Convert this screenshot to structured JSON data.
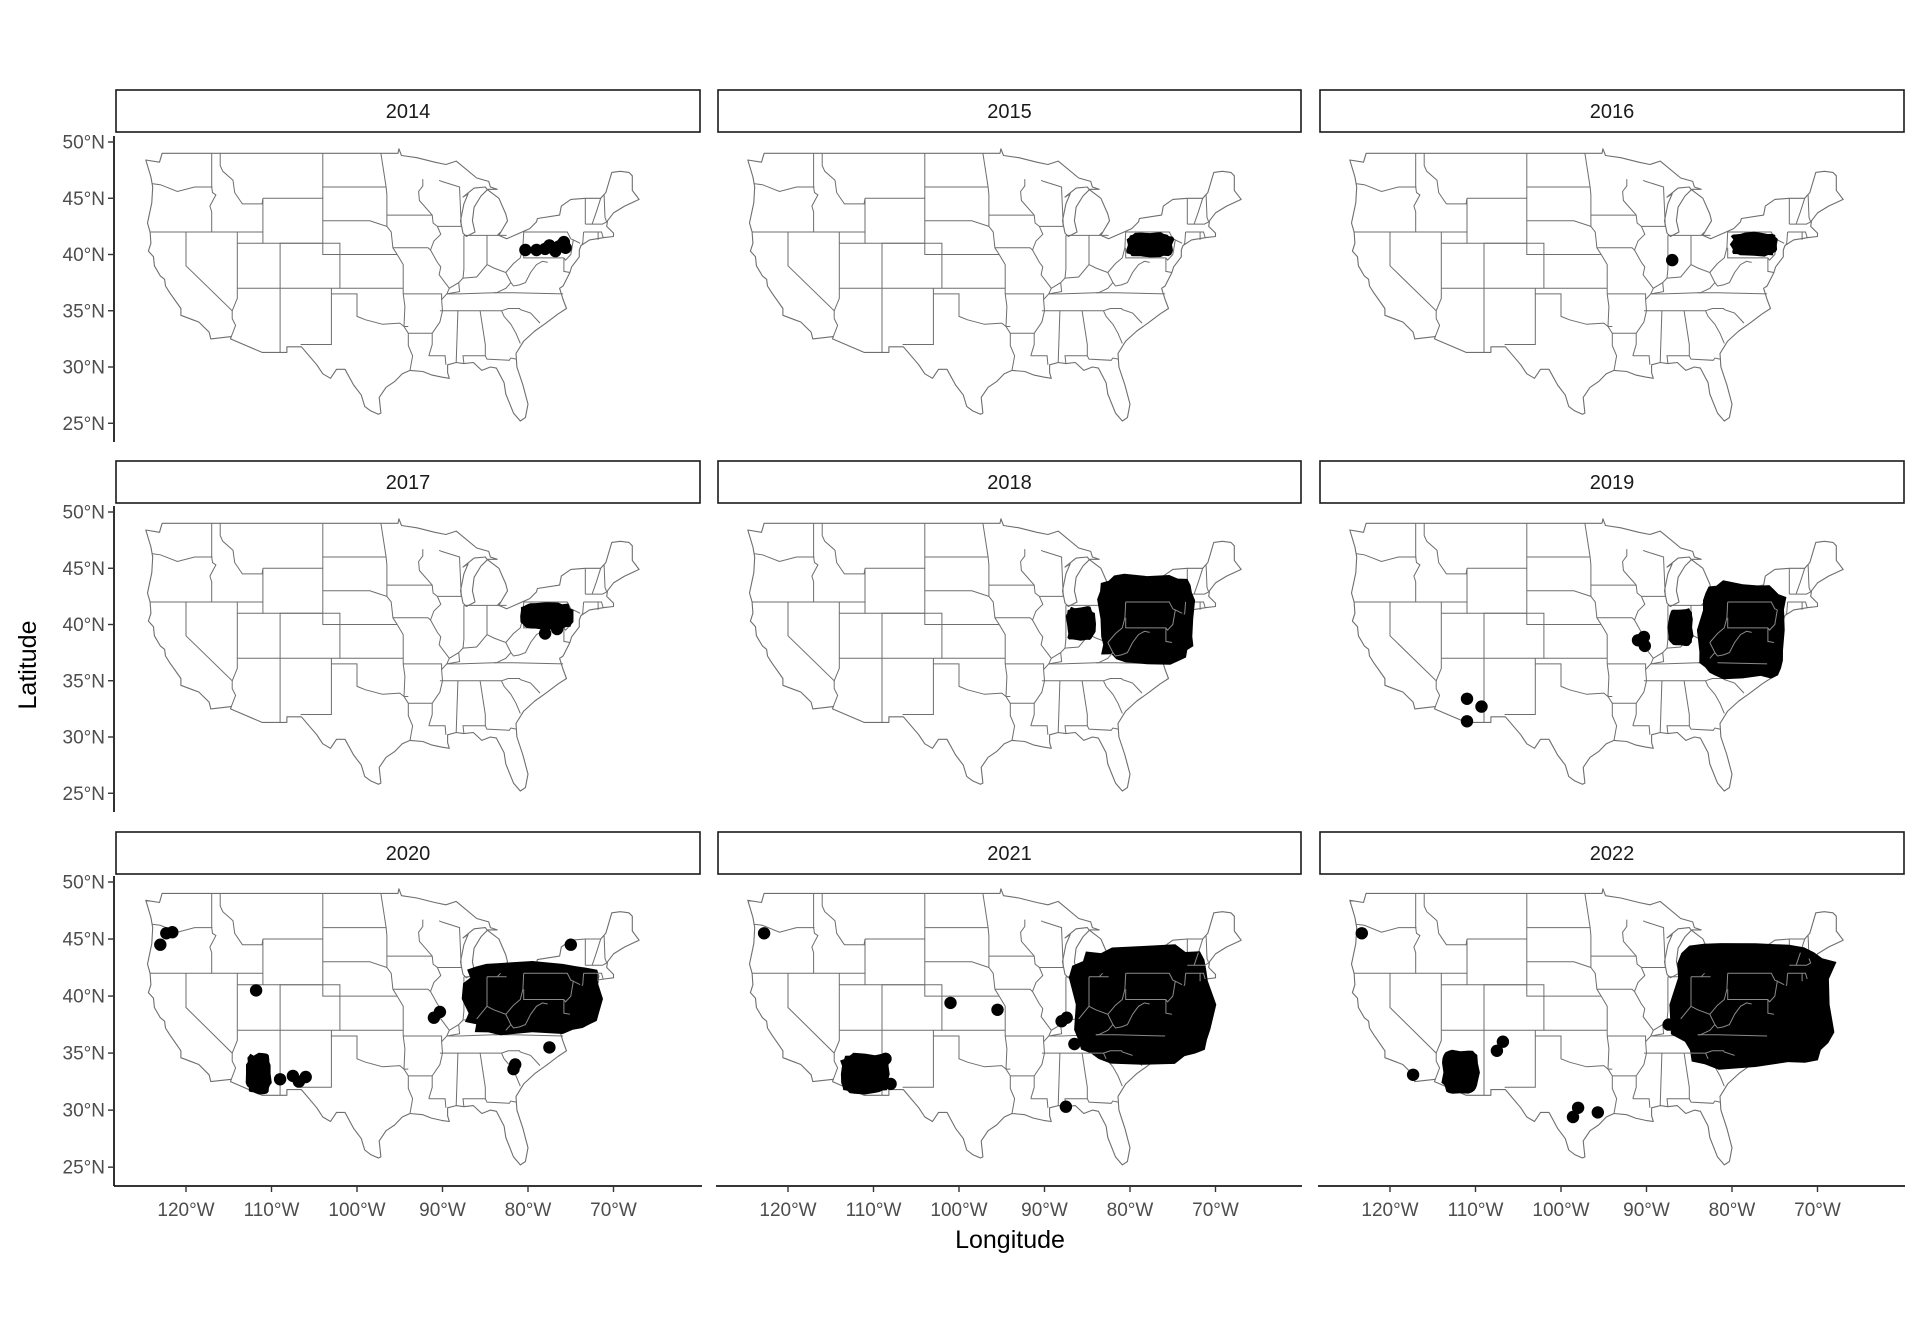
{
  "chart_data": {
    "type": "scatter",
    "subtype": "faceted map (small multiples)",
    "xlabel": "Longitude",
    "ylabel": "Latitude",
    "x_ticks": [
      "120°W",
      "110°W",
      "100°W",
      "90°W",
      "80°W",
      "70°W"
    ],
    "y_ticks": [
      "25°N",
      "30°N",
      "35°N",
      "40°N",
      "45°N",
      "50°N"
    ],
    "xlim": [
      -127,
      -65
    ],
    "ylim": [
      24.5,
      50
    ],
    "point_color": "#000000",
    "basemap": "contiguous United States state boundaries",
    "facets": [
      {
        "label": "2014",
        "points": [
          [
            -80.3,
            40.4
          ],
          [
            -79.0,
            40.4
          ],
          [
            -78.0,
            40.5
          ],
          [
            -77.2,
            40.6
          ],
          [
            -76.4,
            40.7
          ],
          [
            -76.0,
            40.9
          ],
          [
            -75.6,
            40.6
          ],
          [
            -75.8,
            41.1
          ],
          [
            -76.8,
            40.3
          ],
          [
            -77.5,
            40.8
          ]
        ],
        "clusters": []
      },
      {
        "label": "2015",
        "points": [],
        "clusters": [
          {
            "lon": [
              -80.5,
              -74.8
            ],
            "lat": [
              39.7,
              42.0
            ]
          }
        ]
      },
      {
        "label": "2016",
        "points": [
          [
            -87.0,
            39.5
          ]
        ],
        "clusters": [
          {
            "lon": [
              -80.2,
              -74.6
            ],
            "lat": [
              39.8,
              42.0
            ]
          }
        ]
      },
      {
        "label": "2017",
        "points": [
          [
            -78.0,
            39.2
          ],
          [
            -76.6,
            39.6
          ]
        ],
        "clusters": [
          {
            "lon": [
              -81.0,
              -74.6
            ],
            "lat": [
              39.5,
              42.0
            ]
          }
        ]
      },
      {
        "label": "2018",
        "points": [],
        "clusters": [
          {
            "lon": [
              -87.5,
              -84.0
            ],
            "lat": [
              38.5,
              41.6
            ]
          },
          {
            "lon": [
              -84.0,
              -72.0
            ],
            "lat": [
              36.5,
              44.5
            ]
          }
        ]
      },
      {
        "label": "2019",
        "points": [
          [
            -111.0,
            33.4
          ],
          [
            -109.3,
            32.7
          ],
          [
            -111.0,
            31.4
          ],
          [
            -91.0,
            38.6
          ],
          [
            -90.3,
            38.9
          ],
          [
            -90.2,
            38.1
          ]
        ],
        "clusters": [
          {
            "lon": [
              -87.5,
              -84.5
            ],
            "lat": [
              38.0,
              41.5
            ]
          },
          {
            "lon": [
              -84.0,
              -73.5
            ],
            "lat": [
              35.0,
              44.0
            ]
          }
        ]
      },
      {
        "label": "2020",
        "points": [
          [
            -123.0,
            44.5
          ],
          [
            -122.3,
            45.5
          ],
          [
            -121.6,
            45.6
          ],
          [
            -111.8,
            40.5
          ],
          [
            -109.0,
            32.7
          ],
          [
            -107.5,
            33.0
          ],
          [
            -106.8,
            32.5
          ],
          [
            -106.0,
            32.9
          ],
          [
            -91.0,
            38.1
          ],
          [
            -90.3,
            38.6
          ],
          [
            -81.7,
            33.6
          ],
          [
            -81.5,
            34.0
          ],
          [
            -77.5,
            35.5
          ],
          [
            -75.0,
            44.5
          ]
        ],
        "clusters": [
          {
            "lon": [
              -113.0,
              -110.0
            ],
            "lat": [
              31.4,
              35.0
            ]
          },
          {
            "lon": [
              -88.0,
              -71.0
            ],
            "lat": [
              36.5,
              43.0
            ]
          }
        ]
      },
      {
        "label": "2021",
        "points": [
          [
            -122.8,
            45.5
          ],
          [
            -101.0,
            39.4
          ],
          [
            -95.5,
            38.8
          ],
          [
            -88.0,
            37.8
          ],
          [
            -87.4,
            38.1
          ],
          [
            -86.5,
            35.8
          ],
          [
            -87.5,
            30.3
          ],
          [
            -108.6,
            34.5
          ],
          [
            -108.0,
            32.3
          ]
        ],
        "clusters": [
          {
            "lon": [
              -114.0,
              -108.0
            ],
            "lat": [
              31.3,
              35.0
            ]
          },
          {
            "lon": [
              -87.0,
              -70.0
            ],
            "lat": [
              34.0,
              44.5
            ]
          }
        ]
      },
      {
        "label": "2022",
        "points": [
          [
            -123.3,
            45.5
          ],
          [
            -117.3,
            33.1
          ],
          [
            -107.5,
            35.2
          ],
          [
            -106.8,
            36.0
          ],
          [
            -98.6,
            29.4
          ],
          [
            -98.0,
            30.2
          ],
          [
            -95.7,
            29.8
          ],
          [
            -87.4,
            37.5
          ]
        ],
        "clusters": [
          {
            "lon": [
              -114.0,
              -109.5
            ],
            "lat": [
              31.3,
              35.3
            ]
          },
          {
            "lon": [
              -87.0,
              -67.5
            ],
            "lat": [
              33.5,
              45.0
            ]
          }
        ]
      }
    ]
  }
}
